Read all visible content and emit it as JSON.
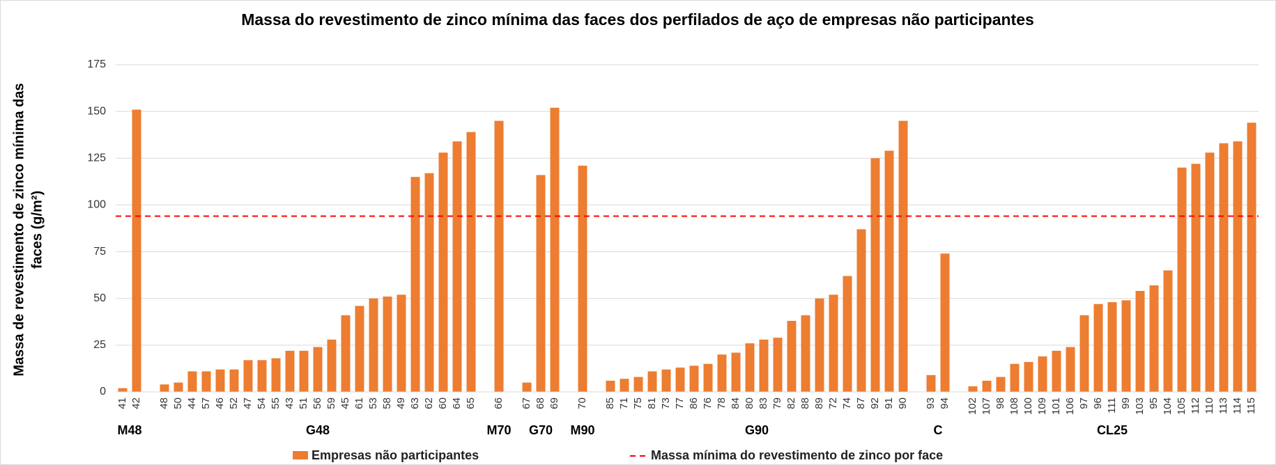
{
  "chart_data": {
    "type": "bar",
    "title": "Massa do revestimento de zinco mínima das faces dos perfilados de aço de empresas não participantes",
    "ylabel": [
      "Massa de revestimento de zinco mínima das",
      "faces (g/m²)"
    ],
    "categories": [
      "41",
      "42",
      null,
      "48",
      "50",
      "44",
      "57",
      "46",
      "52",
      "47",
      "54",
      "55",
      "43",
      "51",
      "56",
      "59",
      "45",
      "61",
      "53",
      "58",
      "49",
      "63",
      "62",
      "60",
      "64",
      "65",
      null,
      "66",
      null,
      "67",
      "68",
      "69",
      null,
      "70",
      null,
      "85",
      "71",
      "75",
      "81",
      "73",
      "77",
      "86",
      "76",
      "78",
      "84",
      "80",
      "83",
      "79",
      "82",
      "88",
      "89",
      "72",
      "74",
      "87",
      "92",
      "91",
      "90",
      null,
      "93",
      "94",
      null,
      "102",
      "107",
      "98",
      "108",
      "100",
      "109",
      "101",
      "106",
      "97",
      "96",
      "111",
      "99",
      "103",
      "95",
      "104",
      "105",
      "112",
      "110",
      "113",
      "114",
      "115"
    ],
    "groups": [
      "M48",
      "G48",
      "M70",
      "G70",
      "M90",
      "G90",
      "C",
      "CL25"
    ],
    "series": [
      {
        "name": "Empresas não participantes",
        "color": "#ed7d31",
        "values": [
          2,
          151,
          null,
          4,
          5,
          11,
          11,
          12,
          12,
          17,
          17,
          18,
          22,
          22,
          24,
          28,
          41,
          46,
          50,
          51,
          52,
          115,
          117,
          128,
          134,
          139,
          null,
          145,
          null,
          5,
          116,
          152,
          null,
          121,
          null,
          6,
          7,
          8,
          11,
          12,
          13,
          14,
          15,
          20,
          21,
          26,
          28,
          29,
          38,
          41,
          50,
          52,
          62,
          87,
          125,
          129,
          145,
          null,
          9,
          74,
          null,
          3,
          6,
          8,
          15,
          16,
          19,
          22,
          24,
          41,
          47,
          48,
          49,
          54,
          57,
          65,
          120,
          122,
          128,
          133,
          134,
          144
        ]
      }
    ],
    "reference_line": {
      "name": "Massa mínima do revestimento de zinco por face",
      "value": 94,
      "color": "#ff0000"
    },
    "ylim": [
      0,
      175
    ],
    "yticks": [
      0,
      25,
      50,
      75,
      100,
      125,
      150,
      175
    ],
    "grid": true
  }
}
